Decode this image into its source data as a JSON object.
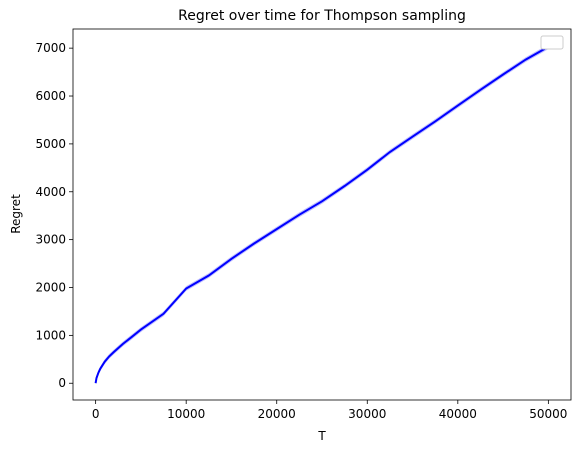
{
  "chart_data": {
    "type": "line",
    "title": "Regret over time for Thompson sampling",
    "xlabel": "T",
    "ylabel": "Regret",
    "xlim": [
      -2500,
      52500
    ],
    "ylim": [
      -350,
      7400
    ],
    "xticks": [
      0,
      10000,
      20000,
      30000,
      40000,
      50000
    ],
    "yticks": [
      0,
      1000,
      2000,
      3000,
      4000,
      5000,
      6000,
      7000
    ],
    "xtick_labels": [
      "0",
      "10000",
      "20000",
      "30000",
      "40000",
      "50000"
    ],
    "ytick_labels": [
      "0",
      "1000",
      "2000",
      "3000",
      "4000",
      "5000",
      "6000",
      "7000"
    ],
    "grid": false,
    "legend": {
      "placement": "upper-right",
      "entries": []
    },
    "series": [
      {
        "color": "#0000ff",
        "x": [
          0,
          100,
          300,
          500,
          1000,
          1500,
          2000,
          3000,
          4000,
          5000,
          7500,
          10000,
          12500,
          15000,
          17500,
          20000,
          22500,
          25000,
          27500,
          30000,
          32500,
          35000,
          37500,
          40000,
          42500,
          45000,
          47500,
          50000
        ],
        "y": [
          0,
          110,
          220,
          300,
          450,
          560,
          650,
          820,
          970,
          1120,
          1450,
          1980,
          2250,
          2600,
          2920,
          3220,
          3520,
          3800,
          4120,
          4460,
          4830,
          5150,
          5470,
          5800,
          6130,
          6450,
          6760,
          7030
        ],
        "band": 50
      }
    ]
  }
}
